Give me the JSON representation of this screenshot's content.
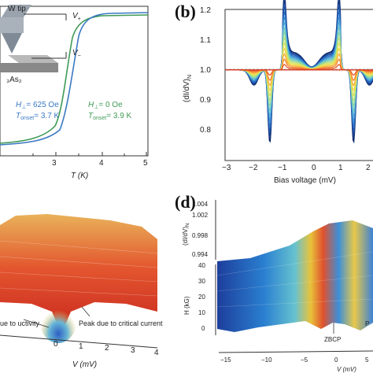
{
  "panel_a": {
    "legend_top": "W tip",
    "v_plus": "V",
    "v_plus_sub": "+",
    "v_minus": "V",
    "v_minus_sub": "−",
    "material": "₃As₂",
    "left_h": "H",
    "left_h_sub": "⊥",
    "left_h_val": "= 625 Oe",
    "left_t": "T",
    "left_t_sub": "onset",
    "left_t_val": "= 3.7 K",
    "right_h": "H",
    "right_h_sub": "⊥",
    "right_h_val": "= 0 Oe",
    "right_t": "T",
    "right_t_sub": "onset",
    "right_t_val": "= 3.9 K",
    "xlabel": "T (K)",
    "x_ticks": [
      "3",
      "4",
      "5"
    ]
  },
  "panel_b": {
    "label": "(b)",
    "ylabel": "(dI/dV)",
    "ylabel_sub": "N",
    "xlabel": "Bias voltage (mV)",
    "y_ticks": [
      "1.2",
      "1.1",
      "1.0",
      "0.9",
      "0.8"
    ],
    "x_ticks": [
      "−3",
      "−2",
      "−1",
      "0",
      "1",
      "2"
    ]
  },
  "panel_c": {
    "annotation_left": "ue to\nuctivity",
    "annotation_right": "Peak due to\ncritical current",
    "xlabel": "V (mV)",
    "x_ticks": [
      "0",
      "1",
      "2",
      "3",
      "4"
    ]
  },
  "panel_d": {
    "label": "(d)",
    "z_axis_label": "(dI/dV)",
    "z_axis_sub": "N",
    "z_ticks": [
      "1.004",
      "1.002",
      "0.998",
      "0.994"
    ],
    "h_axis_label": "H (kG)",
    "h_ticks": [
      "40",
      "30",
      "20",
      "10",
      "0"
    ],
    "zbcp_label": "ZBCP",
    "pc_label": "P",
    "xlabel": "V (mV)",
    "x_ticks": [
      "−15",
      "−10",
      "−5",
      "0",
      "5"
    ]
  },
  "colors": {
    "curve_blue": "#3a78c2",
    "curve_green": "#3f9a55",
    "axis": "#333333"
  }
}
